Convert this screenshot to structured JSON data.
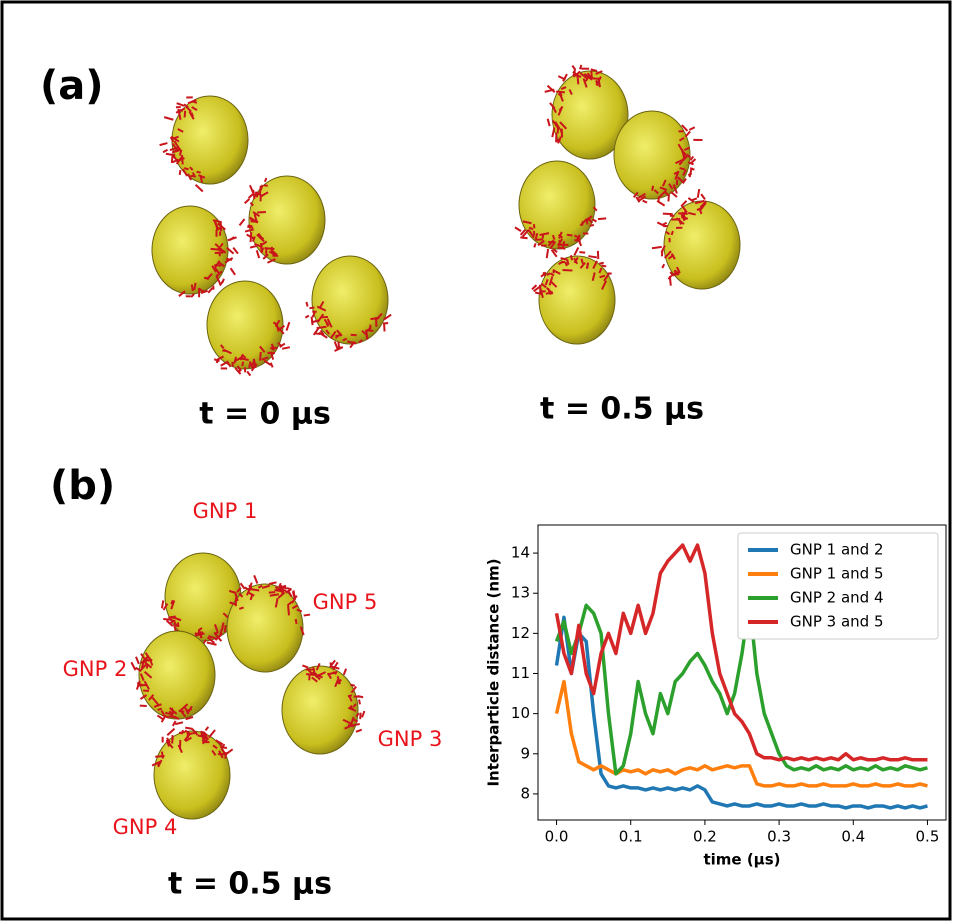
{
  "panel_a": {
    "label": "(a)",
    "captions": [
      "t = 0 μs",
      "t = 0.5 μs"
    ]
  },
  "panel_b": {
    "label": "(b)",
    "caption": "t = 0.5 μs",
    "particle_labels": [
      "GNP 1",
      "GNP 5",
      "GNP 2",
      "GNP 3",
      "GNP 4"
    ]
  },
  "chart_data": {
    "type": "line",
    "xlabel": "time (μs)",
    "ylabel": "Interparticle distance (nm)",
    "x": [
      0,
      0.01,
      0.02,
      0.03,
      0.04,
      0.05,
      0.06,
      0.07,
      0.08,
      0.09,
      0.1,
      0.11,
      0.12,
      0.13,
      0.14,
      0.15,
      0.16,
      0.17,
      0.18,
      0.19,
      0.2,
      0.21,
      0.22,
      0.23,
      0.24,
      0.25,
      0.26,
      0.27,
      0.28,
      0.29,
      0.3,
      0.31,
      0.32,
      0.33,
      0.34,
      0.35,
      0.36,
      0.37,
      0.38,
      0.39,
      0.4,
      0.41,
      0.42,
      0.43,
      0.44,
      0.45,
      0.46,
      0.47,
      0.48,
      0.49,
      0.5
    ],
    "series": [
      {
        "name": "GNP 1 and 2",
        "color": "#1f77b4",
        "values": [
          11.2,
          12.4,
          11.0,
          12.0,
          11.8,
          10.0,
          8.5,
          8.2,
          8.15,
          8.2,
          8.15,
          8.15,
          8.1,
          8.15,
          8.1,
          8.15,
          8.1,
          8.15,
          8.1,
          8.2,
          8.1,
          7.8,
          7.75,
          7.7,
          7.75,
          7.7,
          7.7,
          7.75,
          7.7,
          7.7,
          7.75,
          7.7,
          7.7,
          7.75,
          7.7,
          7.7,
          7.75,
          7.7,
          7.7,
          7.65,
          7.7,
          7.7,
          7.65,
          7.7,
          7.7,
          7.65,
          7.7,
          7.65,
          7.7,
          7.65,
          7.7
        ]
      },
      {
        "name": "GNP 1 and 5",
        "color": "#ff7f0e",
        "values": [
          10.0,
          10.8,
          9.5,
          8.8,
          8.7,
          8.6,
          8.7,
          8.6,
          8.5,
          8.6,
          8.55,
          8.6,
          8.5,
          8.6,
          8.55,
          8.6,
          8.5,
          8.6,
          8.65,
          8.6,
          8.7,
          8.6,
          8.65,
          8.7,
          8.65,
          8.7,
          8.7,
          8.25,
          8.2,
          8.2,
          8.25,
          8.2,
          8.2,
          8.25,
          8.2,
          8.2,
          8.25,
          8.2,
          8.2,
          8.2,
          8.25,
          8.2,
          8.2,
          8.25,
          8.2,
          8.2,
          8.25,
          8.2,
          8.2,
          8.25,
          8.2
        ]
      },
      {
        "name": "GNP 2 and 4",
        "color": "#2ca02c",
        "values": [
          11.8,
          12.3,
          11.5,
          12.0,
          12.7,
          12.5,
          12.0,
          10.0,
          8.5,
          8.7,
          9.5,
          10.8,
          10.0,
          9.5,
          10.5,
          10.0,
          10.8,
          11.0,
          11.3,
          11.5,
          11.2,
          10.8,
          10.5,
          10.0,
          10.5,
          11.5,
          12.8,
          11.0,
          10.0,
          9.5,
          9.0,
          8.7,
          8.6,
          8.65,
          8.6,
          8.7,
          8.6,
          8.65,
          8.6,
          8.7,
          8.6,
          8.65,
          8.6,
          8.7,
          8.6,
          8.65,
          8.6,
          8.7,
          8.65,
          8.6,
          8.65
        ]
      },
      {
        "name": "GNP 3 and 5",
        "color": "#d62728",
        "values": [
          12.5,
          11.5,
          11.0,
          12.2,
          11.0,
          10.5,
          11.5,
          12.0,
          11.5,
          12.5,
          12.0,
          12.7,
          12.0,
          12.5,
          13.5,
          13.8,
          14.0,
          14.2,
          13.8,
          14.2,
          13.5,
          12.0,
          11.0,
          10.5,
          10.0,
          9.8,
          9.5,
          9.0,
          8.9,
          8.9,
          8.85,
          8.9,
          8.85,
          8.9,
          8.85,
          8.9,
          8.85,
          8.9,
          8.85,
          9.0,
          8.85,
          8.9,
          8.85,
          8.85,
          8.9,
          8.85,
          8.85,
          8.9,
          8.85,
          8.85,
          8.85
        ]
      }
    ],
    "xlim": [
      -0.025,
      0.525
    ],
    "ylim": [
      7.35,
      14.7
    ],
    "xticks": [
      {
        "value": 0,
        "label": "0.0"
      },
      0.1,
      0.2,
      0.3,
      0.4,
      0.5
    ],
    "yticks": [
      8,
      9,
      10,
      11,
      12,
      13,
      14
    ],
    "legend": "upper right"
  }
}
